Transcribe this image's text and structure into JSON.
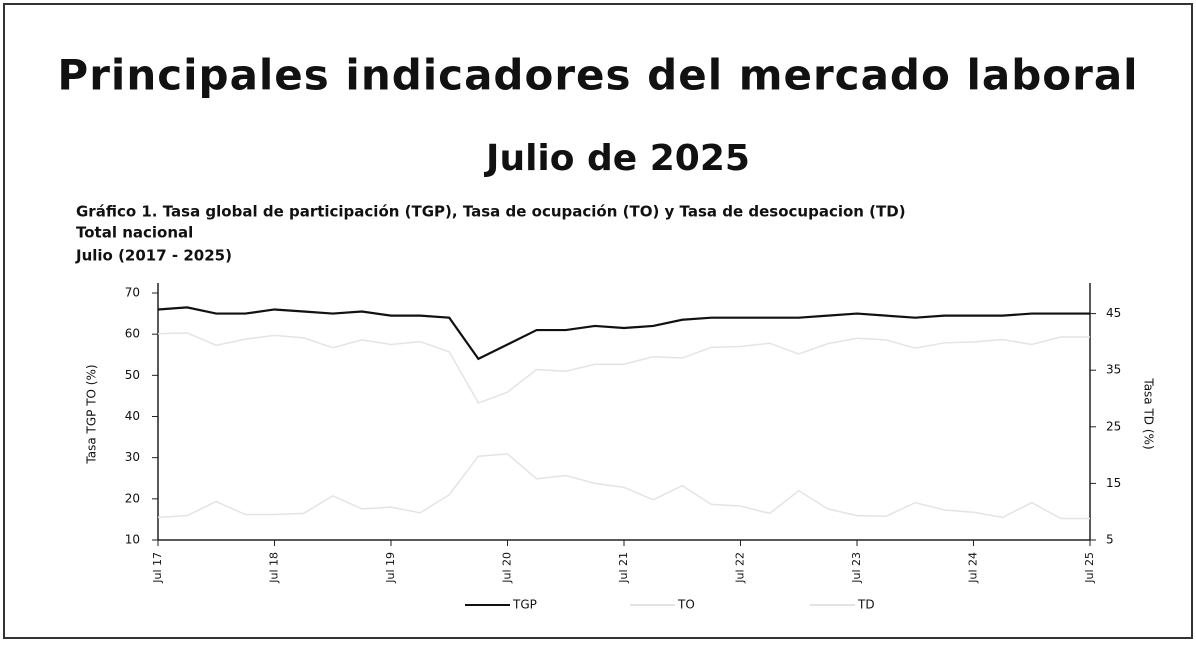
{
  "header": {
    "title": "Principales indicadores del mercado laboral",
    "subtitle": "Julio de 2025"
  },
  "chart_data": {
    "type": "line",
    "title": "Gráfico 1. Tasa global de participación (TGP), Tasa de ocupación (TO) y Tasa de desocupacion (TD)",
    "subtitle": [
      "Total nacional",
      "Julio (2017 - 2025)"
    ],
    "y_label": "Tasa TGP TO (%)",
    "y2_label": "Tasa TD (%)",
    "categories": [
      "Jul 17",
      null,
      null,
      null,
      "Jul 18",
      null,
      null,
      null,
      "Jul 19",
      null,
      null,
      null,
      "Jul 20",
      null,
      null,
      null,
      "Jul 21",
      null,
      null,
      null,
      "Jul 22",
      null,
      null,
      null,
      "Jul 23",
      null,
      null,
      null,
      "Jul 24",
      null,
      null,
      null,
      "Jul 25"
    ],
    "series": [
      {
        "name": "TGP",
        "color": "#111111",
        "values": [
          66,
          66.5,
          65,
          65,
          66,
          65.5,
          65,
          65.5,
          64.5,
          64.5,
          64,
          54,
          57.5,
          61,
          61,
          62,
          61.5,
          62,
          63.5,
          64,
          64,
          64,
          64,
          64.5,
          65,
          64.5,
          64,
          64.5,
          64.5,
          64.5,
          65,
          65,
          65
        ]
      },
      {
        "name": "TO",
        "color": "#e4e4e4",
        "values": [
          60.1,
          60.3,
          57.3,
          58.8,
          59.7,
          59.1,
          56.7,
          58.6,
          57.5,
          58.2,
          55.7,
          43.3,
          45.9,
          51.4,
          51.0,
          52.7,
          52.7,
          54.5,
          54.2,
          56.8,
          57.0,
          57.8,
          55.2,
          57.7,
          59.0,
          58.6,
          56.6,
          57.9,
          58.1,
          58.7,
          57.5,
          59.3,
          59.3
        ]
      },
      {
        "name": "TD",
        "color": "#e4e4e4",
        "axis": "y2",
        "values": [
          9.0,
          9.3,
          11.8,
          9.5,
          9.5,
          9.7,
          12.8,
          10.5,
          10.8,
          9.8,
          13.0,
          19.8,
          20.2,
          15.8,
          16.4,
          15.0,
          14.3,
          12.1,
          14.6,
          11.3,
          11.0,
          9.7,
          13.7,
          10.5,
          9.3,
          9.2,
          11.6,
          10.3,
          9.9,
          9.0,
          11.6,
          8.8,
          8.8
        ]
      }
    ],
    "ylim": [
      10,
      70
    ],
    "yticks": [
      10,
      20,
      30,
      40,
      50,
      60,
      70
    ],
    "y2lim": [
      5,
      48.64
    ],
    "y2ticks": [
      5,
      15,
      25,
      35,
      45
    ],
    "legend": "bottom"
  }
}
